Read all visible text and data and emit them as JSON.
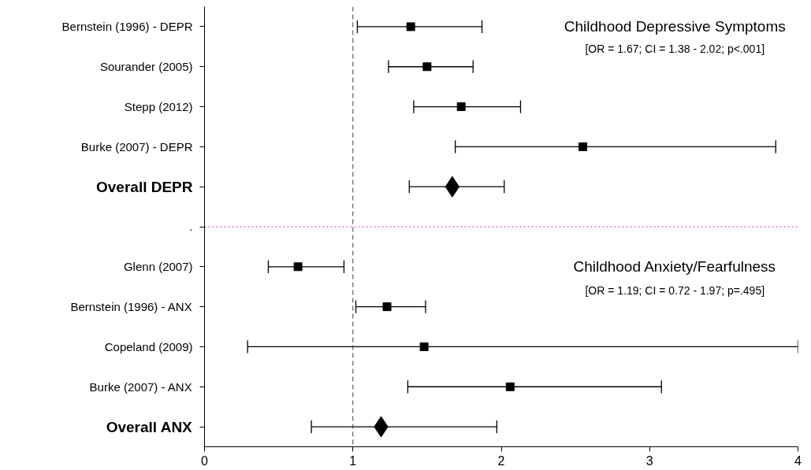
{
  "chart_data": {
    "type": "scatter",
    "orientation": "horizontal",
    "categories": [
      "Bernstein (1996) - DEPR",
      "Sourander (2005)",
      "Stepp (2012)",
      "Burke (2007) - DEPR",
      "Overall DEPR",
      ".",
      "Glenn (2007)",
      "Bernstein (1996) - ANX",
      "Copeland (2009)",
      "Burke (2007) - ANX",
      "Overall ANX"
    ],
    "series": [
      {
        "color": "#000000",
        "marker": "square",
        "values": [
          1.39,
          1.5,
          1.73,
          2.55,
          null,
          null,
          0.63,
          1.23,
          1.48,
          2.06,
          null
        ],
        "errors": [
          [
            1.03,
            1.87
          ],
          [
            1.24,
            1.81
          ],
          [
            1.41,
            2.13
          ],
          [
            1.69,
            3.85
          ],
          null,
          null,
          [
            0.43,
            0.94
          ],
          [
            1.02,
            1.49
          ],
          [
            0.29,
            4.0
          ],
          [
            1.37,
            3.08
          ],
          null
        ]
      },
      {
        "color": "#000000",
        "marker": "diamond",
        "values": [
          null,
          null,
          null,
          null,
          1.67,
          null,
          null,
          null,
          null,
          null,
          1.19
        ],
        "errors": [
          null,
          null,
          null,
          null,
          [
            1.38,
            2.02
          ],
          null,
          null,
          null,
          null,
          null,
          [
            0.72,
            1.97
          ]
        ]
      }
    ],
    "xlim": [
      0,
      4
    ],
    "xticks": [
      0,
      1,
      2,
      3,
      4
    ],
    "grid": false,
    "ref_lines": [
      {
        "axis": "x",
        "value": 1,
        "color": "#404040",
        "line_style": "dashed"
      },
      {
        "axis": "y",
        "value": ".",
        "color": "#cc33cc",
        "line_style": "dotted"
      }
    ],
    "annotations": [
      "Childhood Depressive Symptoms",
      "[OR = 1.67; CI = 1.38 - 2.02; p<.001]",
      "Childhood Anxiety/Fearfulness",
      "[OR = 1.19; CI = 0.72 - 1.97; p=.495]"
    ]
  }
}
